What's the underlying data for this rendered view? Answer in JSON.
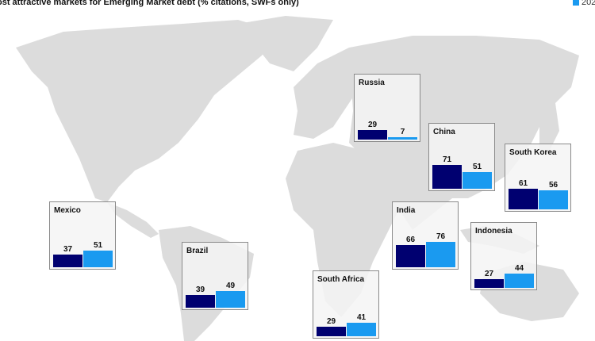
{
  "chart_data": {
    "type": "bar",
    "title": "ost attractive markets for Emerging Market debt (% citations, SWFs only)",
    "legend": {
      "placement": "top-right",
      "entries": [
        {
          "label": "202",
          "color": "#1a9af0"
        }
      ]
    },
    "colors": {
      "series1": "#000070",
      "series2": "#1a9af0",
      "land": "#dcdcdc"
    },
    "categories": [
      "Russia",
      "China",
      "South Korea",
      "Mexico",
      "India",
      "Indonesia",
      "Brazil",
      "South Africa"
    ],
    "series": [
      {
        "values": [
          29,
          71,
          61,
          37,
          66,
          27,
          39,
          29
        ]
      },
      {
        "name": "202",
        "values": [
          7,
          51,
          56,
          51,
          76,
          44,
          49,
          41
        ]
      }
    ]
  }
}
